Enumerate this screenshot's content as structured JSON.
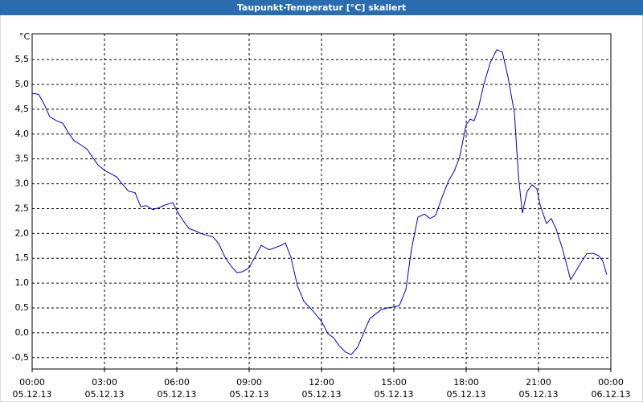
{
  "chart_data": {
    "type": "line",
    "title": "Taupunkt-Temperatur [°C] skaliert",
    "y_unit": "°C",
    "color": "#0000c8",
    "grid": true,
    "xlim": [
      0,
      24
    ],
    "ylim": [
      -0.73,
      6.02
    ],
    "xticks": [
      {
        "value": 0,
        "label": "00:00",
        "date": "05.12.13"
      },
      {
        "value": 3,
        "label": "03:00",
        "date": "05.12.13"
      },
      {
        "value": 6,
        "label": "06:00",
        "date": "05.12.13"
      },
      {
        "value": 9,
        "label": "09:00",
        "date": "05.12.13"
      },
      {
        "value": 12,
        "label": "12:00",
        "date": "05.12.13"
      },
      {
        "value": 15,
        "label": "15:00",
        "date": "05.12.13"
      },
      {
        "value": 18,
        "label": "18:00",
        "date": "05.12.13"
      },
      {
        "value": 21,
        "label": "21:00",
        "date": "05.12.13"
      },
      {
        "value": 24,
        "label": "00:00",
        "date": "06.12.13"
      }
    ],
    "yticks": [
      {
        "value": -0.5,
        "label": "-0,5"
      },
      {
        "value": 0,
        "label": "0,0"
      },
      {
        "value": 0.5,
        "label": "0,5"
      },
      {
        "value": 1,
        "label": "1,0"
      },
      {
        "value": 1.5,
        "label": "1,5"
      },
      {
        "value": 2,
        "label": "2,0"
      },
      {
        "value": 2.5,
        "label": "2,5"
      },
      {
        "value": 3,
        "label": "3,0"
      },
      {
        "value": 3.5,
        "label": "3,5"
      },
      {
        "value": 4,
        "label": "4,0"
      },
      {
        "value": 4.5,
        "label": "4,5"
      },
      {
        "value": 5,
        "label": "5,0"
      },
      {
        "value": 5.5,
        "label": "5,5"
      }
    ],
    "x": [
      0,
      0.27,
      0.5,
      0.73,
      1,
      1.27,
      1.5,
      1.73,
      2,
      2.27,
      2.5,
      2.73,
      3,
      3.27,
      3.5,
      3.73,
      4,
      4.27,
      4.5,
      4.73,
      5,
      5.27,
      5.5,
      5.83,
      6,
      6.27,
      6.5,
      6.83,
      7,
      7.27,
      7.5,
      7.73,
      8,
      8.27,
      8.5,
      8.73,
      9,
      9.27,
      9.5,
      9.83,
      10,
      10.33,
      10.5,
      10.73,
      11,
      11.27,
      11.5,
      11.73,
      12,
      12.27,
      12.5,
      12.73,
      13,
      13.23,
      13.5,
      13.73,
      14,
      14.27,
      14.5,
      14.73,
      15,
      15.23,
      15.5,
      15.73,
      16,
      16.27,
      16.5,
      16.73,
      17,
      17.27,
      17.5,
      17.73,
      18,
      18.17,
      18.33,
      18.5,
      18.73,
      19,
      19.27,
      19.5,
      19.73,
      20,
      20.17,
      20.33,
      20.53,
      20.73,
      20.93,
      21.07,
      21.33,
      21.53,
      21.73,
      22,
      22.33,
      22.5,
      22.73,
      23,
      23.27,
      23.5,
      23.67,
      23.83
    ],
    "values": [
      4.82,
      4.8,
      4.6,
      4.35,
      4.27,
      4.22,
      4.03,
      3.87,
      3.79,
      3.7,
      3.54,
      3.38,
      3.27,
      3.2,
      3.14,
      3.0,
      2.85,
      2.82,
      2.54,
      2.56,
      2.48,
      2.52,
      2.57,
      2.62,
      2.46,
      2.25,
      2.1,
      2.04,
      2.0,
      1.96,
      1.93,
      1.8,
      1.52,
      1.33,
      1.21,
      1.23,
      1.31,
      1.55,
      1.76,
      1.67,
      1.7,
      1.76,
      1.81,
      1.52,
      0.95,
      0.63,
      0.52,
      0.39,
      0.23,
      -0.02,
      -0.1,
      -0.26,
      -0.39,
      -0.44,
      -0.29,
      -0.02,
      0.28,
      0.39,
      0.47,
      0.5,
      0.52,
      0.55,
      0.87,
      1.68,
      2.33,
      2.39,
      2.3,
      2.36,
      2.73,
      3.06,
      3.25,
      3.54,
      4.19,
      4.3,
      4.27,
      4.51,
      5.0,
      5.44,
      5.7,
      5.65,
      5.16,
      4.43,
      3.14,
      2.41,
      2.85,
      2.98,
      2.9,
      2.57,
      2.2,
      2.3,
      2.09,
      1.68,
      1.07,
      1.2,
      1.39,
      1.59,
      1.6,
      1.55,
      1.44,
      1.17
    ]
  }
}
